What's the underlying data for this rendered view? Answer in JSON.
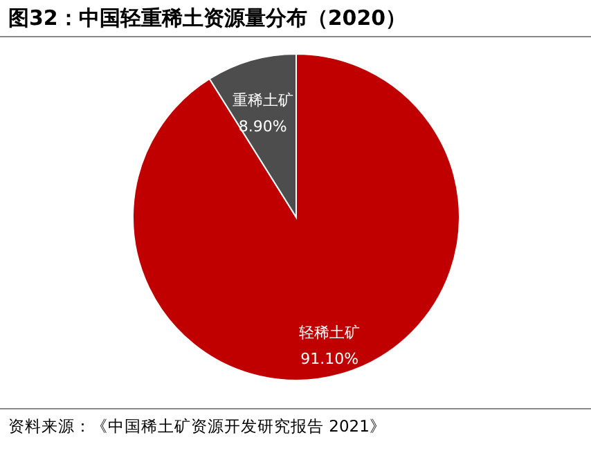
{
  "chart_data": {
    "type": "pie",
    "title": "图32：中国轻重稀土资源量分布（2020）",
    "categories": [
      "轻稀土矿",
      "重稀土矿"
    ],
    "values": [
      91.1,
      8.9
    ],
    "colors": [
      "#c00000",
      "#4d4d4d"
    ],
    "value_labels": [
      "91.10%",
      "8.90%"
    ],
    "legend": false,
    "annotations": [
      "资料来源：《中国稀土矿资源开发研究报告 2021》"
    ]
  }
}
